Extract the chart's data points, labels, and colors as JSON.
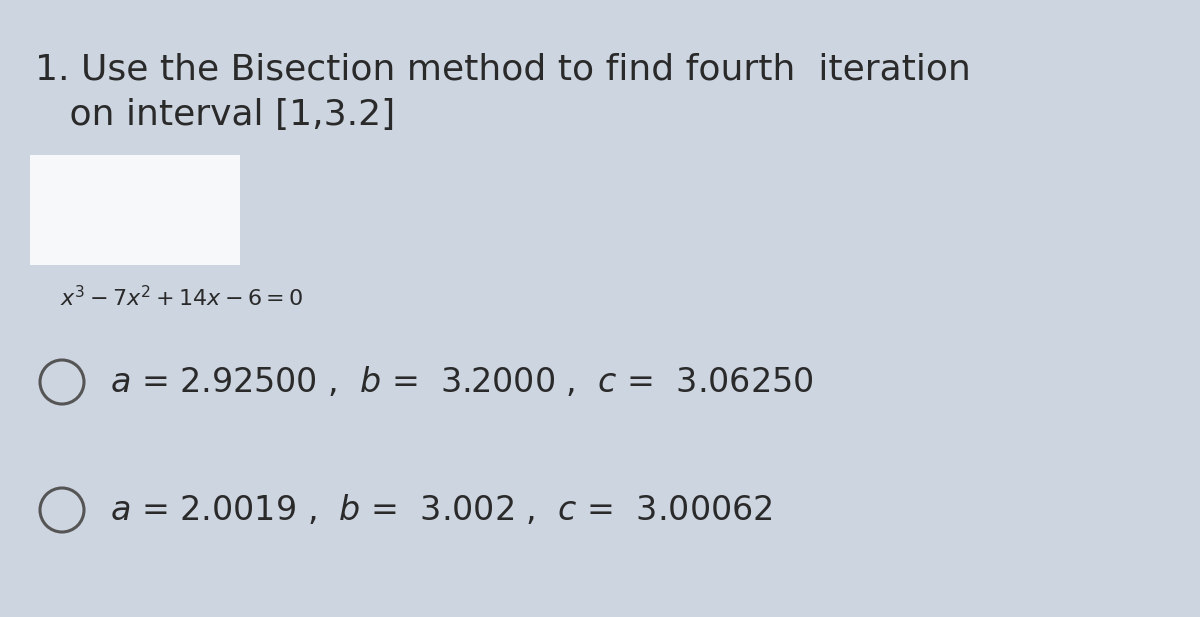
{
  "background_color": "#cdd5e0",
  "white_box_color": "#ffffff",
  "title_line1": "1. Use the Bisection method to find fourth  iteration",
  "title_line2": "   on interval [1,3.2]",
  "equation": "$x^3-7x^2+14x-6=0$",
  "option1_text": "$a$ = 2.92500 ,  $b$ =  3.2000 ,  $c$ =  3.06250",
  "option2_text": "$a$ = 2.0019 ,  $b$ =  3.002 ,  $c$ =  3.00062",
  "title_fontsize": 26,
  "equation_fontsize": 16,
  "option_fontsize": 24,
  "text_color": "#2a2a2a",
  "circle_edge_color": "#555555"
}
